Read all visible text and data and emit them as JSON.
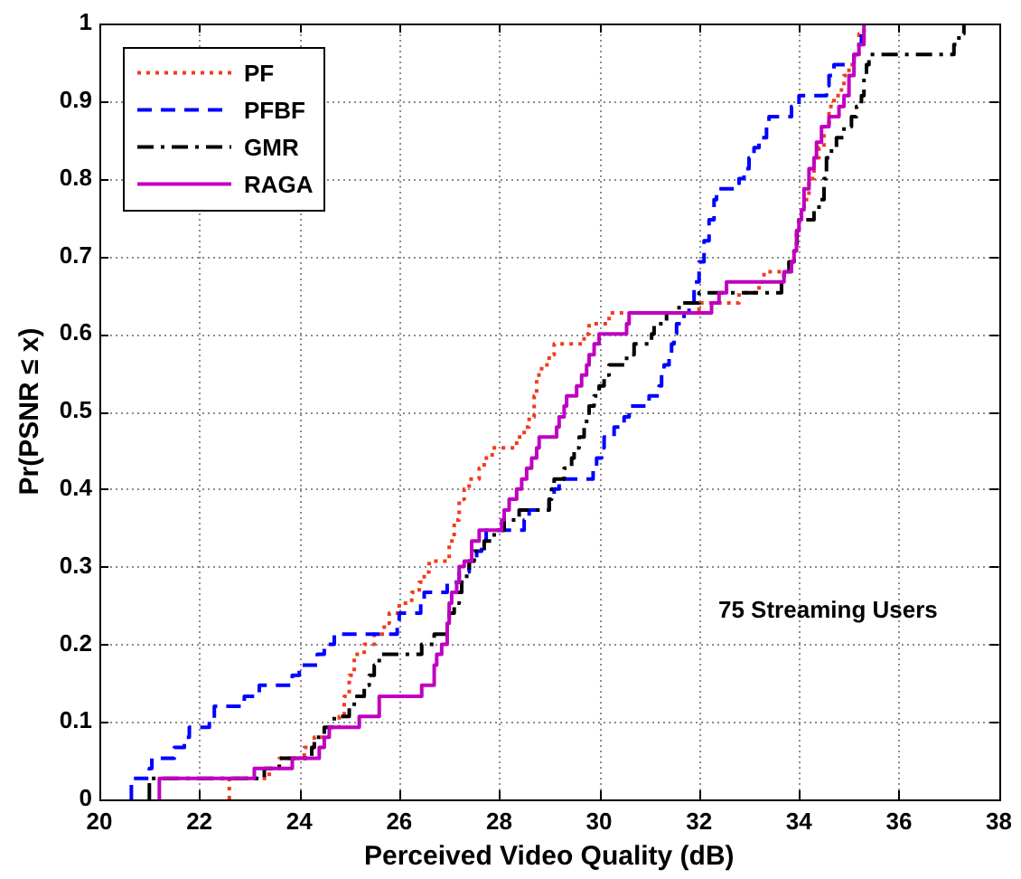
{
  "chart_data": {
    "type": "step",
    "xlabel": "Perceived Video Quality (dB)",
    "ylabel": "Pr(PSNR ≤ x)",
    "xlim": [
      20,
      38
    ],
    "xticks": [
      20,
      22,
      24,
      26,
      28,
      30,
      32,
      34,
      36,
      38
    ],
    "ylim": [
      0,
      1
    ],
    "yticks": [
      0,
      0.1,
      0.2,
      0.3,
      0.4,
      0.5,
      0.6,
      0.7,
      0.8,
      0.9,
      1
    ],
    "grid": true,
    "legend": "top left",
    "annotations": [
      "75 Streaming Users"
    ],
    "series": [
      {
        "name": "PF",
        "color": "#f03c1e",
        "line_style": "dotted",
        "x": [
          22.6,
          22.6,
          23.4,
          23.6,
          24.1,
          24.3,
          24.5,
          24.8,
          24.9,
          25.0,
          25.1,
          25.3,
          25.5,
          25.7,
          25.8,
          26.0,
          26.25,
          26.4,
          26.5,
          26.6,
          27.0,
          27.1,
          27.2,
          27.3,
          27.4,
          27.6,
          27.7,
          27.86,
          28.35,
          28.5,
          28.6,
          28.7,
          28.75,
          28.85,
          29.0,
          29.1,
          29.7,
          29.8,
          30.2,
          32.0,
          32.8,
          33.2,
          33.3,
          33.8,
          33.9,
          33.95,
          34.0,
          34.05,
          34.1,
          34.2,
          34.3,
          34.4,
          34.5,
          34.6,
          34.7,
          34.85,
          34.9,
          35.0,
          35.1,
          35.2,
          35.3,
          35.35
        ],
        "values": [
          0,
          0.013,
          0.027,
          0.04,
          0.053,
          0.067,
          0.08,
          0.093,
          0.107,
          0.133,
          0.16,
          0.187,
          0.2,
          0.213,
          0.227,
          0.24,
          0.253,
          0.267,
          0.28,
          0.293,
          0.307,
          0.333,
          0.36,
          0.387,
          0.4,
          0.413,
          0.427,
          0.44,
          0.453,
          0.467,
          0.48,
          0.493,
          0.52,
          0.547,
          0.56,
          0.573,
          0.587,
          0.6,
          0.613,
          0.627,
          0.64,
          0.653,
          0.667,
          0.68,
          0.693,
          0.707,
          0.733,
          0.747,
          0.76,
          0.773,
          0.8,
          0.827,
          0.84,
          0.867,
          0.893,
          0.907,
          0.92,
          0.933,
          0.947,
          0.96,
          0.987,
          1.0
        ]
      },
      {
        "name": "PFBF",
        "color": "#0000ff",
        "line_style": "dashed",
        "x": [
          20.64,
          20.64,
          21.0,
          21.05,
          21.5,
          21.7,
          21.8,
          22.2,
          22.3,
          22.9,
          23.2,
          23.86,
          24.0,
          24.36,
          24.5,
          24.7,
          25.96,
          26.0,
          26.43,
          26.5,
          26.96,
          27.2,
          27.4,
          27.55,
          27.65,
          27.74,
          28.5,
          28.6,
          29.0,
          29.1,
          29.2,
          29.88,
          29.95,
          30.05,
          30.1,
          30.3,
          30.5,
          30.6,
          31.0,
          31.2,
          31.25,
          31.3,
          31.4,
          31.45,
          31.5,
          31.55,
          31.7,
          31.8,
          31.9,
          32.0,
          32.1,
          32.2,
          32.3,
          32.35,
          32.8,
          32.9,
          33.0,
          33.1,
          33.2,
          33.35,
          33.4,
          33.85,
          34.0,
          34.55,
          34.6,
          34.7,
          35.1,
          35.2,
          35.25,
          35.3
        ],
        "values": [
          0,
          0.013,
          0.027,
          0.04,
          0.053,
          0.067,
          0.08,
          0.093,
          0.1,
          0.12,
          0.133,
          0.147,
          0.16,
          0.173,
          0.187,
          0.2,
          0.213,
          0.227,
          0.24,
          0.253,
          0.267,
          0.28,
          0.293,
          0.307,
          0.32,
          0.333,
          0.347,
          0.36,
          0.373,
          0.387,
          0.4,
          0.413,
          0.427,
          0.44,
          0.453,
          0.467,
          0.48,
          0.493,
          0.507,
          0.52,
          0.533,
          0.547,
          0.56,
          0.573,
          0.587,
          0.6,
          0.613,
          0.627,
          0.64,
          0.667,
          0.693,
          0.72,
          0.747,
          0.773,
          0.787,
          0.8,
          0.813,
          0.827,
          0.84,
          0.853,
          0.867,
          0.88,
          0.893,
          0.907,
          0.92,
          0.933,
          0.947,
          0.96,
          0.973,
          1.0
        ]
      },
      {
        "name": "GMR",
        "color": "#000000",
        "line_style": "dashdot",
        "x": [
          21.0,
          21.0,
          23.3,
          23.6,
          24.25,
          24.3,
          24.5,
          24.7,
          25.0,
          25.1,
          25.3,
          25.4,
          25.5,
          25.6,
          26.45,
          26.7,
          26.96,
          27.0,
          27.1,
          27.2,
          27.25,
          27.35,
          27.4,
          27.5,
          27.7,
          27.9,
          28.1,
          28.4,
          29.0,
          29.05,
          29.1,
          29.3,
          29.45,
          29.5,
          29.6,
          29.7,
          29.75,
          29.8,
          29.9,
          30.0,
          30.1,
          30.2,
          30.55,
          30.7,
          31.05,
          31.1,
          31.35,
          31.6,
          32.0,
          33.65,
          33.7,
          33.8,
          33.9,
          33.96,
          34.0,
          34.3,
          34.4,
          34.5,
          34.55,
          34.65,
          34.75,
          34.9,
          35.05,
          35.15,
          35.25,
          35.3,
          35.35,
          35.4,
          37.1,
          37.2,
          37.3,
          37.45
        ],
        "values": [
          0,
          0.013,
          0.027,
          0.04,
          0.053,
          0.067,
          0.08,
          0.093,
          0.107,
          0.12,
          0.133,
          0.147,
          0.16,
          0.173,
          0.187,
          0.2,
          0.213,
          0.227,
          0.24,
          0.253,
          0.267,
          0.28,
          0.293,
          0.307,
          0.32,
          0.333,
          0.347,
          0.36,
          0.373,
          0.387,
          0.4,
          0.413,
          0.427,
          0.44,
          0.453,
          0.467,
          0.48,
          0.493,
          0.507,
          0.52,
          0.533,
          0.547,
          0.56,
          0.573,
          0.587,
          0.6,
          0.613,
          0.627,
          0.64,
          0.653,
          0.667,
          0.68,
          0.693,
          0.707,
          0.733,
          0.747,
          0.76,
          0.773,
          0.8,
          0.827,
          0.84,
          0.853,
          0.867,
          0.88,
          0.893,
          0.907,
          0.933,
          0.947,
          0.96,
          0.973,
          0.987,
          1.0
        ]
      },
      {
        "name": "RAGA",
        "color": "#c000c0",
        "line_style": "solid",
        "x": [
          21.2,
          21.2,
          23.1,
          23.86,
          24.4,
          24.5,
          24.6,
          25.2,
          25.6,
          26.45,
          26.7,
          26.75,
          26.85,
          26.96,
          27.0,
          27.05,
          27.15,
          27.2,
          27.3,
          27.45,
          27.6,
          28.05,
          28.1,
          28.2,
          28.35,
          28.45,
          28.55,
          28.65,
          28.75,
          28.8,
          29.15,
          29.2,
          29.3,
          29.35,
          29.55,
          29.65,
          29.75,
          29.8,
          29.9,
          30.0,
          30.55,
          30.6,
          32.25,
          32.4,
          32.55,
          33.7,
          33.85,
          33.9,
          33.95,
          34.0,
          34.05,
          34.1,
          34.2,
          34.3,
          34.35,
          34.45,
          34.6,
          34.8,
          34.9,
          35.0,
          35.1,
          35.2,
          35.3,
          35.4
        ],
        "values": [
          0,
          0.013,
          0.027,
          0.04,
          0.053,
          0.067,
          0.08,
          0.093,
          0.107,
          0.133,
          0.147,
          0.173,
          0.187,
          0.2,
          0.227,
          0.253,
          0.267,
          0.28,
          0.3,
          0.307,
          0.333,
          0.347,
          0.36,
          0.373,
          0.387,
          0.4,
          0.413,
          0.427,
          0.44,
          0.453,
          0.467,
          0.48,
          0.493,
          0.507,
          0.52,
          0.533,
          0.547,
          0.56,
          0.573,
          0.587,
          0.6,
          0.613,
          0.627,
          0.64,
          0.653,
          0.667,
          0.68,
          0.693,
          0.707,
          0.733,
          0.747,
          0.76,
          0.787,
          0.813,
          0.827,
          0.847,
          0.867,
          0.88,
          0.893,
          0.907,
          0.933,
          0.96,
          0.973,
          1.0
        ]
      }
    ]
  }
}
